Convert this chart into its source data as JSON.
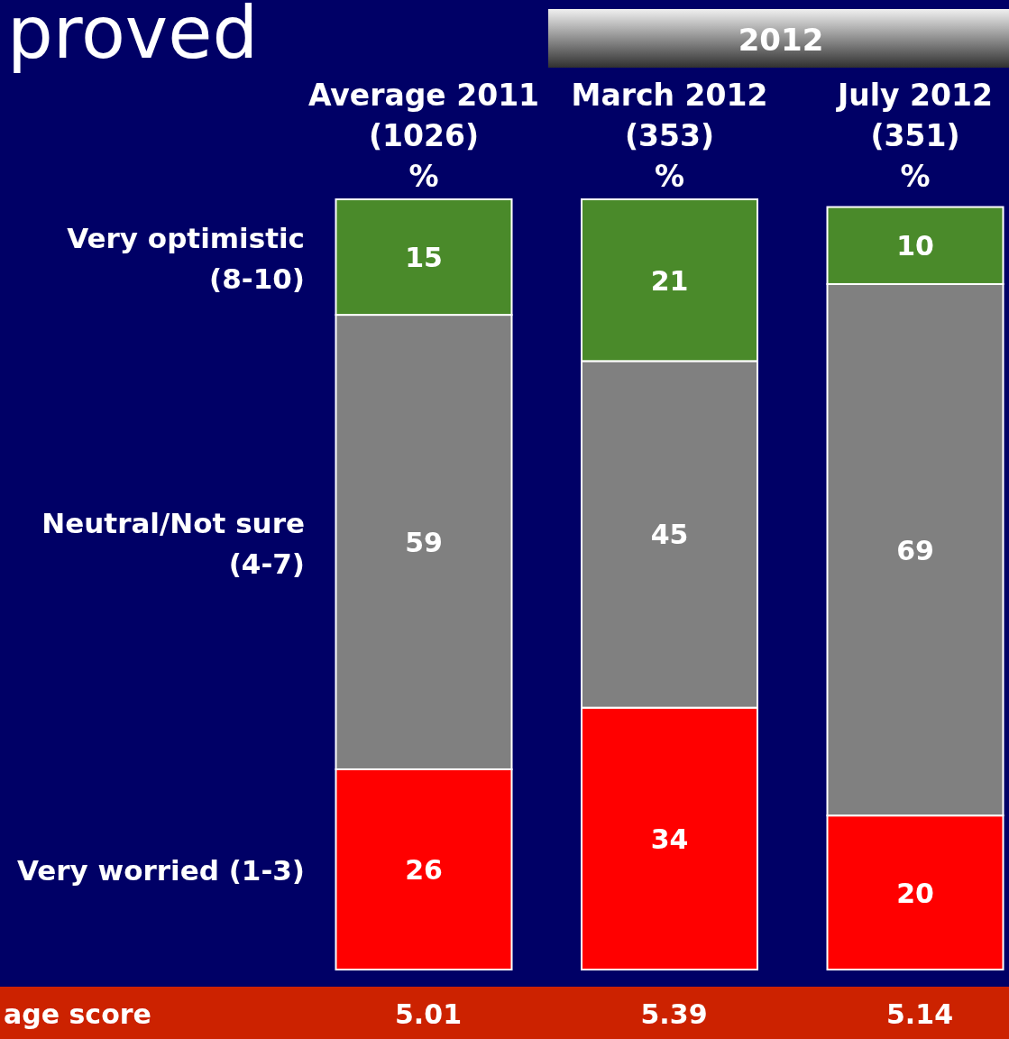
{
  "chart_data": {
    "type": "bar",
    "stacked": true,
    "title": "proved",
    "categories": [
      "Average 2011 (1026) %",
      "March 2012 (353) %",
      "July 2012 (351) %"
    ],
    "series": [
      {
        "name": "Very worried (1-3)",
        "color": "#ff0000",
        "values": [
          26,
          34,
          20
        ]
      },
      {
        "name": "Neutral/Not sure (4-7)",
        "color": "#808080",
        "values": [
          59,
          45,
          69
        ]
      },
      {
        "name": "Very optimistic (8-10)",
        "color": "#4a8a2a",
        "values": [
          15,
          21,
          10
        ]
      }
    ],
    "data_labels": true,
    "legend": "left",
    "annotations": [
      "2012",
      "age score",
      "5.01",
      "5.39",
      "5.14"
    ]
  }
}
